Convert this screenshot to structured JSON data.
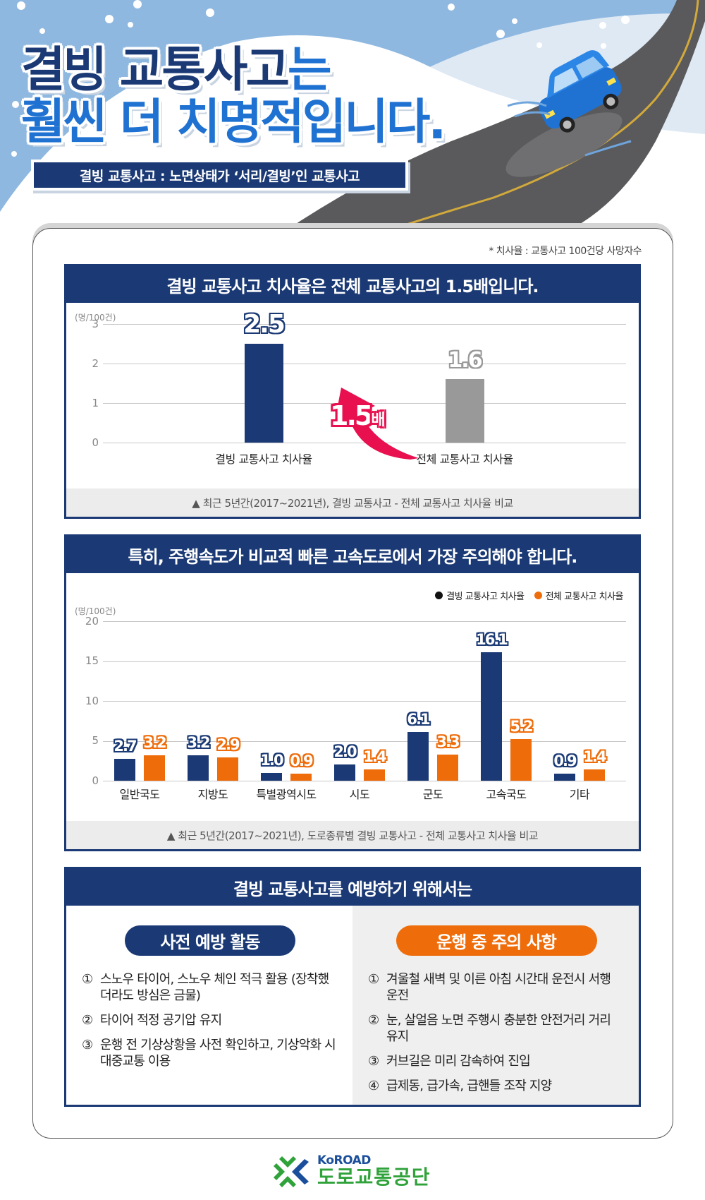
{
  "header": {
    "title_line1_main": "결빙 교통사고",
    "title_line1_accent": "는",
    "title_line2": "훨씬 더 치명적입니다.",
    "subtitle": "결빙 교통사고 : 노면상태가 ‘서리/결빙’인 교통사고",
    "illustration": "car-sliding-on-icy-road"
  },
  "note": "* 치사율 : 교통사고 100건당 사망자수",
  "colors": {
    "navy": "#1b3a75",
    "blue": "#1f72d1",
    "orange": "#ee6c0a",
    "gray_bar": "#999999",
    "arrow_pink": "#e8104f",
    "sky": "#8fb8e0"
  },
  "chart1": {
    "heading": "결빙 교통사고 치사율은 전체 교통사고의 1.5배입니다.",
    "unit": "(명/100건)",
    "ticks": [
      "0",
      "1",
      "2",
      "3"
    ],
    "categories": [
      "결빙 교통사고 치사율",
      "전체 교통사고 치사율"
    ],
    "value_labels": [
      "2.5",
      "1.6"
    ],
    "multiplier": "1.5",
    "multiplier_unit": "배",
    "footnote": "▲ 최근 5년간(2017~2021년), 결빙 교통사고 - 전체 교통사고 치사율 비교"
  },
  "chart2": {
    "heading": "특히, 주행속도가 비교적 빠른 고속도로에서 가장 주의해야 합니다.",
    "unit": "(명/100건)",
    "ticks": [
      "0",
      "5",
      "10",
      "15",
      "20"
    ],
    "legend": [
      "결빙 교통사고 치사율",
      "전체 교통사고 치사율"
    ],
    "categories": [
      "일반국도",
      "지방도",
      "특별광역시도",
      "시도",
      "군도",
      "고속국도",
      "기타"
    ],
    "icy_labels": [
      "2.7",
      "3.2",
      "1.0",
      "2.0",
      "6.1",
      "16.1",
      "0.9"
    ],
    "all_labels": [
      "3.2",
      "2.9",
      "0.9",
      "1.4",
      "3.3",
      "5.2",
      "1.4"
    ],
    "footnote": "▲ 최근 5년간(2017~2021년), 도로종류별 결빙 교통사고 - 전체 교통사고 치사율 비교"
  },
  "prevention": {
    "heading": "결빙 교통사고를 예방하기 위해서는",
    "left": {
      "title": "사전 예방 활동",
      "items": [
        {
          "num": "①",
          "text": "스노우 타이어, 스노우 체인 적극 활용 (장착했더라도 방심은 금물)"
        },
        {
          "num": "②",
          "text": "타이어 적정 공기압 유지"
        },
        {
          "num": "③",
          "text": "운행 전 기상상황을 사전 확인하고, 기상악화 시 대중교통 이용"
        }
      ]
    },
    "right": {
      "title": "운행 중 주의 사항",
      "items": [
        {
          "num": "①",
          "text": "겨울철 새벽 및 이른 아침 시간대 운전시 서행 운전"
        },
        {
          "num": "②",
          "text": "눈, 살얼음 노면 주행시 충분한 안전거리 거리 유지"
        },
        {
          "num": "③",
          "text": "커브길은 미리 감속하여 진입"
        },
        {
          "num": "④",
          "text": "급제동, 급가속, 급핸들 조작 지양"
        }
      ]
    }
  },
  "logo": {
    "en": "KoROAD",
    "ko": "도로교통공단"
  },
  "chart_data": [
    {
      "type": "bar",
      "title": "결빙 교통사고 치사율은 전체 교통사고의 1.5배입니다.",
      "xlabel": "",
      "ylabel": "(명/100건)",
      "ylim": [
        0,
        3
      ],
      "yticks": [
        0,
        1,
        2,
        3
      ],
      "grid": true,
      "categories": [
        "결빙 교통사고 치사율",
        "전체 교통사고 치사율"
      ],
      "values": [
        2.5,
        1.6
      ],
      "colors": [
        "#1b3a75",
        "#999999"
      ],
      "annotations": [
        "1.5배 (arrow from 전체 to 결빙)"
      ],
      "caption": "▲ 최근 5년간(2017~2021년), 결빙 교통사고 - 전체 교통사고 치사율 비교"
    },
    {
      "type": "bar",
      "title": "특히, 주행속도가 비교적 빠른 고속도로에서 가장 주의해야 합니다.",
      "xlabel": "",
      "ylabel": "(명/100건)",
      "ylim": [
        0,
        20
      ],
      "yticks": [
        0,
        5,
        10,
        15,
        20
      ],
      "grid": true,
      "legend_position": "top-right",
      "categories": [
        "일반국도",
        "지방도",
        "특별광역시도",
        "시도",
        "군도",
        "고속국도",
        "기타"
      ],
      "series": [
        {
          "name": "결빙 교통사고 치사율",
          "color": "#1b3a75",
          "values": [
            2.7,
            3.2,
            1.0,
            2.0,
            6.1,
            16.1,
            0.9
          ]
        },
        {
          "name": "전체 교통사고 치사율",
          "color": "#ee6c0a",
          "values": [
            3.2,
            2.9,
            0.9,
            1.4,
            3.3,
            5.2,
            1.4
          ]
        }
      ],
      "caption": "▲ 최근 5년간(2017~2021년), 도로종류별 결빙 교통사고 - 전체 교통사고 치사율 비교"
    }
  ]
}
